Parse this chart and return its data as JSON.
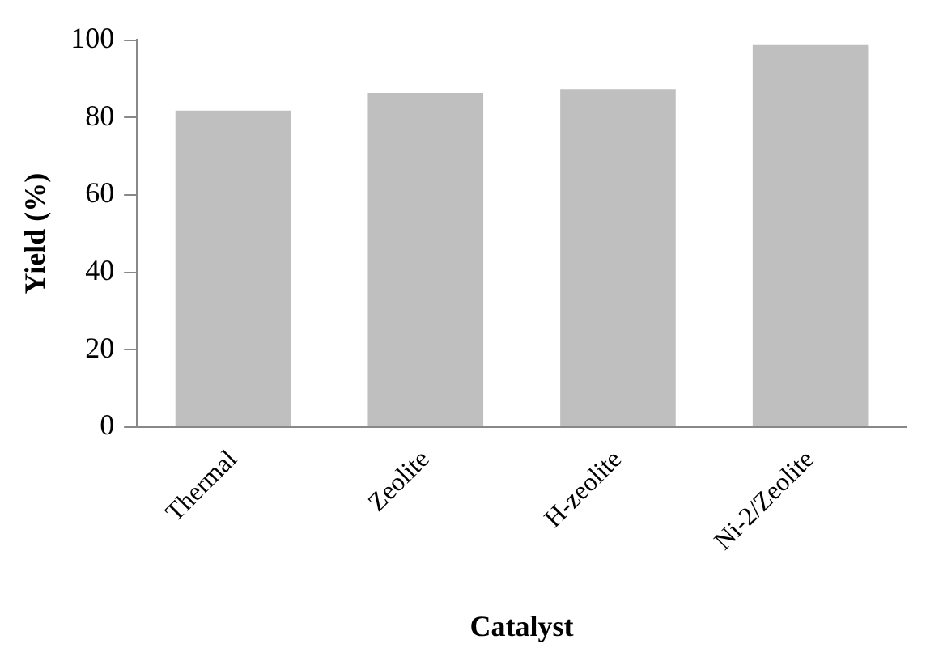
{
  "chart_data": {
    "type": "bar",
    "xlabel": "Catalyst",
    "ylabel": "Yield (%)",
    "categories": [
      "Thermal",
      "Zeolite",
      "H-zeolite",
      "Ni-2/Zeolite"
    ],
    "values": [
      81.8,
      86.3,
      87.3,
      98.7
    ],
    "color": "#bfbfbf",
    "ylim": [
      0,
      100
    ],
    "yticks": [
      0,
      20,
      40,
      60,
      80,
      100
    ],
    "grid": false,
    "legend": false
  }
}
